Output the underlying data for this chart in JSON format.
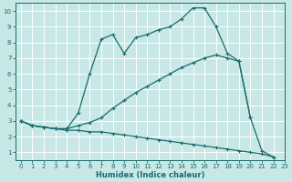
{
  "xlabel": "Humidex (Indice chaleur)",
  "bg_color": "#c8e8e8",
  "grid_color": "#ffffff",
  "line_color": "#1a6b6b",
  "xlim": [
    -0.5,
    23
  ],
  "ylim": [
    0.5,
    10.5
  ],
  "xticks": [
    0,
    1,
    2,
    3,
    4,
    5,
    6,
    7,
    8,
    9,
    10,
    11,
    12,
    13,
    14,
    15,
    16,
    17,
    18,
    19,
    20,
    21,
    22,
    23
  ],
  "yticks": [
    1,
    2,
    3,
    4,
    5,
    6,
    7,
    8,
    9,
    10
  ],
  "line1_x": [
    0,
    1,
    2,
    3,
    4,
    5,
    6,
    7,
    8,
    9,
    10,
    11,
    12,
    13,
    14,
    15,
    16,
    17,
    18,
    19,
    20,
    21,
    22
  ],
  "line1_y": [
    3.0,
    2.7,
    2.6,
    2.5,
    2.5,
    3.5,
    6.0,
    8.2,
    8.5,
    7.3,
    8.3,
    8.5,
    8.8,
    9.0,
    9.5,
    10.2,
    10.2,
    9.0,
    7.3,
    6.8,
    3.2,
    1.1,
    0.7
  ],
  "line2_x": [
    0,
    1,
    2,
    3,
    4,
    5,
    6,
    7,
    8,
    9,
    10,
    11,
    12,
    13,
    14,
    15,
    16,
    17,
    18,
    19,
    20
  ],
  "line2_y": [
    3.0,
    2.7,
    2.6,
    2.5,
    2.5,
    2.7,
    2.9,
    3.2,
    3.8,
    4.3,
    4.8,
    5.2,
    5.6,
    6.0,
    6.4,
    6.7,
    7.0,
    7.2,
    7.0,
    6.8,
    3.2
  ],
  "line3_x": [
    0,
    1,
    2,
    3,
    4,
    5,
    6,
    7,
    8,
    9,
    10,
    11,
    12,
    13,
    14,
    15,
    16,
    17,
    18,
    19,
    20,
    21,
    22
  ],
  "line3_y": [
    3.0,
    2.7,
    2.6,
    2.5,
    2.4,
    2.4,
    2.3,
    2.3,
    2.2,
    2.1,
    2.0,
    1.9,
    1.8,
    1.7,
    1.6,
    1.5,
    1.4,
    1.3,
    1.2,
    1.1,
    1.0,
    0.9,
    0.7
  ]
}
